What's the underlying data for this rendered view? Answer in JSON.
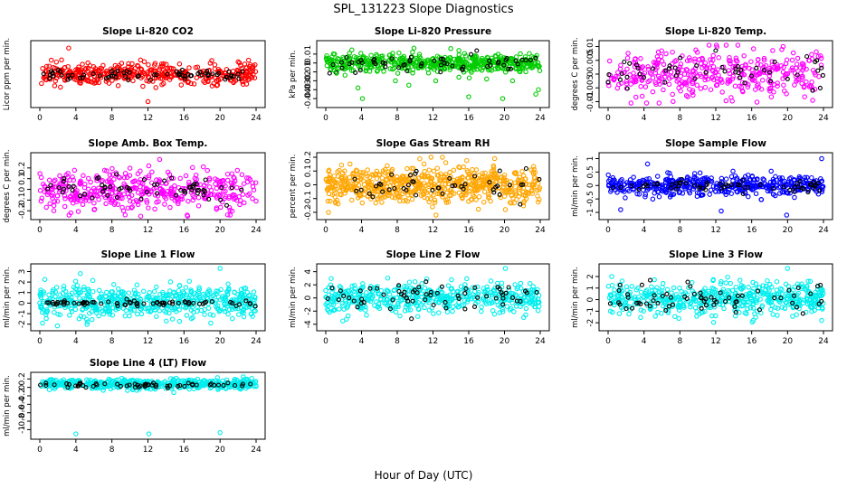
{
  "figure": {
    "title": "SPL_131223  Slope Diagnostics",
    "xlabel": "Hour of Day (UTC)"
  },
  "chart_data": [
    {
      "type": "scatter",
      "title": "Slope Li-820 CO2",
      "ylabel": "Licor ppm per min.",
      "xlim": [
        0,
        24
      ],
      "xticks": [
        0,
        4,
        8,
        12,
        16,
        20,
        24
      ],
      "ylim": [
        -1.0,
        1.0
      ],
      "yticks": [],
      "color": "#ff0000",
      "series": [
        {
          "n": 420,
          "center": 0.0,
          "spread": 0.18
        },
        {
          "n": 70,
          "center": -0.02,
          "spread": 0.1,
          "color": "#000000"
        }
      ],
      "outliers": [
        [
          3.2,
          0.9
        ],
        [
          12.0,
          -0.95
        ],
        [
          8.7,
          -0.4
        ],
        [
          15.5,
          0.35
        ]
      ]
    },
    {
      "type": "scatter",
      "title": "Slope Li-820 Pressure",
      "ylabel": "kPa per min.",
      "xlim": [
        0,
        24
      ],
      "xticks": [
        0,
        4,
        8,
        12,
        16,
        20,
        24
      ],
      "ylim": [
        -0.045,
        0.02
      ],
      "yticks": [
        -0.04,
        -0.03,
        -0.02,
        -0.01,
        0.0,
        0.01
      ],
      "color": "#00cc00",
      "series": [
        {
          "n": 500,
          "center": 0.0,
          "spread": 0.005
        },
        {
          "n": 60,
          "center": 0.0,
          "spread": 0.005,
          "color": "#000000"
        }
      ],
      "outliers": [
        [
          1.2,
          -0.01
        ],
        [
          4.1,
          -0.04
        ],
        [
          3.6,
          -0.028
        ],
        [
          7.8,
          -0.02
        ],
        [
          12.3,
          -0.02
        ],
        [
          14.9,
          -0.016
        ],
        [
          16.0,
          -0.038
        ],
        [
          19.8,
          -0.04
        ],
        [
          20.9,
          -0.02
        ],
        [
          23.8,
          -0.03
        ],
        [
          23.5,
          -0.035
        ],
        [
          9.3,
          -0.025
        ],
        [
          18.0,
          -0.018
        ]
      ]
    },
    {
      "type": "scatter",
      "title": "Slope Li-820 Temp.",
      "ylabel": "degrees C per min.",
      "xlim": [
        0,
        24
      ],
      "xticks": [
        0,
        4,
        8,
        12,
        16,
        20,
        24
      ],
      "ylim": [
        -0.0105,
        0.0105
      ],
      "yticks": [
        -0.01,
        -0.005,
        0.0,
        0.005,
        0.01
      ],
      "color": "#ff00ff",
      "series": [
        {
          "n": 380,
          "center": 0.0,
          "spread": 0.0045
        },
        {
          "n": 50,
          "center": 0.0,
          "spread": 0.003,
          "color": "#000000"
        }
      ],
      "outliers": [
        [
          19.5,
          0.01
        ],
        [
          22.8,
          -0.0095
        ],
        [
          3.8,
          -0.008
        ],
        [
          13.7,
          -0.0085
        ]
      ]
    },
    {
      "type": "scatter",
      "title": "Slope Amb. Box Temp.",
      "ylabel": "degrees C per min.",
      "xlim": [
        0,
        24
      ],
      "xticks": [
        0,
        4,
        8,
        12,
        16,
        20,
        24
      ],
      "ylim": [
        -0.24,
        0.3
      ],
      "yticks": [
        -0.2,
        -0.1,
        0.0,
        0.1,
        0.2
      ],
      "color": "#ff00ff",
      "series": [
        {
          "n": 420,
          "center": 0.0,
          "spread": 0.09
        },
        {
          "n": 60,
          "center": 0.0,
          "spread": 0.06,
          "color": "#000000"
        }
      ],
      "outliers": [
        [
          13.3,
          0.28
        ],
        [
          11.2,
          -0.25
        ],
        [
          16.4,
          -0.25
        ],
        [
          9.3,
          -0.2
        ]
      ]
    },
    {
      "type": "scatter",
      "title": "Slope Gas Stream RH",
      "ylabel": "percent per min.",
      "xlim": [
        0,
        24
      ],
      "xticks": [
        0,
        4,
        8,
        12,
        16,
        20,
        24
      ],
      "ylim": [
        -0.22,
        0.2
      ],
      "yticks": [
        -0.2,
        -0.1,
        0.0,
        0.1,
        0.2
      ],
      "color": "#ffa500",
      "series": [
        {
          "n": 620,
          "center": 0.0,
          "spread": 0.07
        },
        {
          "n": 45,
          "center": 0.0,
          "spread": 0.05,
          "color": "#000000"
        }
      ],
      "outliers": [
        [
          0.3,
          -0.2
        ],
        [
          18.9,
          0.19
        ],
        [
          20.1,
          -0.18
        ]
      ]
    },
    {
      "type": "scatter",
      "title": "Slope Sample Flow",
      "ylabel": "ml/min per min.",
      "xlim": [
        0,
        24
      ],
      "xticks": [
        0,
        4,
        8,
        12,
        16,
        20,
        24
      ],
      "ylim": [
        -1.1,
        1.05
      ],
      "yticks": [
        -1.0,
        -0.5,
        0.0,
        0.5,
        1.0
      ],
      "color": "#0000ff",
      "series": [
        {
          "n": 470,
          "center": 0.0,
          "spread": 0.18
        },
        {
          "n": 60,
          "center": 0.0,
          "spread": 0.12,
          "color": "#000000"
        }
      ],
      "outliers": [
        [
          23.8,
          1.0
        ],
        [
          19.9,
          -1.1
        ],
        [
          4.4,
          0.8
        ],
        [
          1.4,
          -0.9
        ],
        [
          12.6,
          -0.95
        ]
      ]
    },
    {
      "type": "scatter",
      "title": "Slope Line 1 Flow",
      "ylabel": "ml/min per min.",
      "xlim": [
        0,
        24
      ],
      "xticks": [
        0,
        4,
        8,
        12,
        16,
        20,
        24
      ],
      "ylim": [
        -2.2,
        3.3
      ],
      "yticks": [
        -2,
        -1,
        0,
        1,
        2,
        3
      ],
      "color": "#00eeee",
      "series": [
        {
          "n": 540,
          "center": 0.1,
          "spread": 0.75
        },
        {
          "n": 70,
          "center": 0.0,
          "spread": 0.12,
          "color": "#000000"
        }
      ],
      "outliers": [
        [
          20.0,
          3.3
        ],
        [
          4.5,
          2.8
        ],
        [
          0.3,
          -1.9
        ]
      ]
    },
    {
      "type": "scatter",
      "title": "Slope Line 2 Flow",
      "ylabel": "ml/min per min.",
      "xlim": [
        0,
        24
      ],
      "xticks": [
        0,
        4,
        8,
        12,
        16,
        20,
        24
      ],
      "ylim": [
        -4.3,
        4.5
      ],
      "yticks": [
        -4,
        -2,
        0,
        2,
        4
      ],
      "color": "#00eeee",
      "series": [
        {
          "n": 480,
          "center": 0.0,
          "spread": 1.1
        },
        {
          "n": 65,
          "center": 0.0,
          "spread": 0.9,
          "color": "#000000"
        }
      ],
      "outliers": [
        [
          20.1,
          4.5
        ],
        [
          1.9,
          -3.5
        ]
      ]
    },
    {
      "type": "scatter",
      "title": "Slope Line 3 Flow",
      "ylabel": "ml/min per min.",
      "xlim": [
        0,
        24
      ],
      "xticks": [
        0,
        4,
        8,
        12,
        16,
        20,
        24
      ],
      "ylim": [
        -2.3,
        2.7
      ],
      "yticks": [
        -2,
        -1,
        0,
        1,
        2
      ],
      "color": "#00eeee",
      "series": [
        {
          "n": 520,
          "center": 0.1,
          "spread": 0.7
        },
        {
          "n": 65,
          "center": 0.0,
          "spread": 0.6,
          "color": "#000000"
        }
      ],
      "outliers": [
        [
          20.0,
          2.7
        ],
        [
          0.4,
          2.0
        ],
        [
          23.8,
          -1.8
        ]
      ]
    },
    {
      "type": "scatter",
      "title": "Slope Line 4 (LT) Flow",
      "ylabel": "ml/min per min.",
      "xlim": [
        0,
        24
      ],
      "xticks": [
        0,
        4,
        8,
        12,
        16,
        20,
        24
      ],
      "ylim": [
        -1.12,
        0.25
      ],
      "yticks": [
        -1.0,
        -0.8,
        -0.6,
        -0.4,
        -0.2,
        0.0,
        0.2
      ],
      "color": "#00eeee",
      "series": [
        {
          "n": 480,
          "center": 0.08,
          "spread": 0.06
        },
        {
          "n": 60,
          "center": 0.06,
          "spread": 0.03,
          "color": "#000000"
        }
      ],
      "outliers": [
        [
          4.0,
          -1.1
        ],
        [
          12.1,
          -1.1
        ],
        [
          20.0,
          -1.07
        ],
        [
          1.5,
          0.17
        ]
      ]
    }
  ]
}
